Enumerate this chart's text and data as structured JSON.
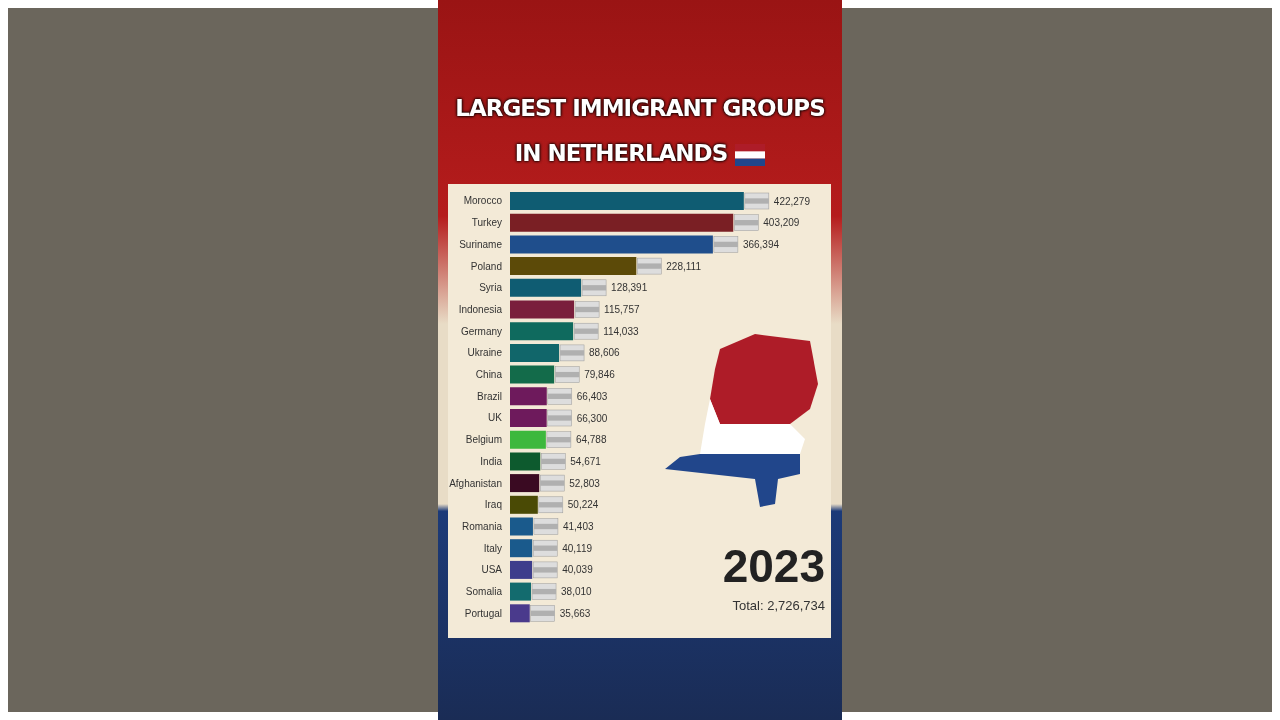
{
  "chart_data": {
    "type": "bar",
    "orientation": "horizontal",
    "title": "LARGEST IMMIGRANT GROUPS\nIN NETHERLANDS",
    "categories": [
      "Morocco",
      "Turkey",
      "Suriname",
      "Poland",
      "Syria",
      "Indonesia",
      "Germany",
      "Ukraine",
      "China",
      "Brazil",
      "UK",
      "Belgium",
      "India",
      "Afghanistan",
      "Iraq",
      "Romania",
      "Italy",
      "USA",
      "Somalia",
      "Portugal"
    ],
    "values": [
      422279,
      403209,
      366394,
      228111,
      128391,
      115757,
      114033,
      88606,
      79846,
      66403,
      66300,
      64788,
      54671,
      52803,
      50224,
      41403,
      40119,
      40039,
      38010,
      35663
    ],
    "colors": [
      "#0f5c72",
      "#7a1f24",
      "#1f4e8c",
      "#5c4a08",
      "#0f5c72",
      "#7a1f3c",
      "#0f6a5e",
      "#11666a",
      "#136b4a",
      "#6e1a5c",
      "#6e1a5c",
      "#3db83d",
      "#0d5a2e",
      "#3a0a22",
      "#4a4a05",
      "#1a5a8c",
      "#1a5a8c",
      "#3d3d8c",
      "#136b6e",
      "#4a3a8c"
    ],
    "value_labels": [
      "422,279",
      "403,209",
      "366,394",
      "228,111",
      "128,391",
      "115,757",
      "114,033",
      "88,606",
      "79,846",
      "66,403",
      "66,300",
      "64,788",
      "54,671",
      "52,803",
      "50,224",
      "41,403",
      "40,119",
      "40,039",
      "38,010",
      "35,663"
    ],
    "annotations": [
      "2023",
      "Total: 2,726,734"
    ]
  }
}
